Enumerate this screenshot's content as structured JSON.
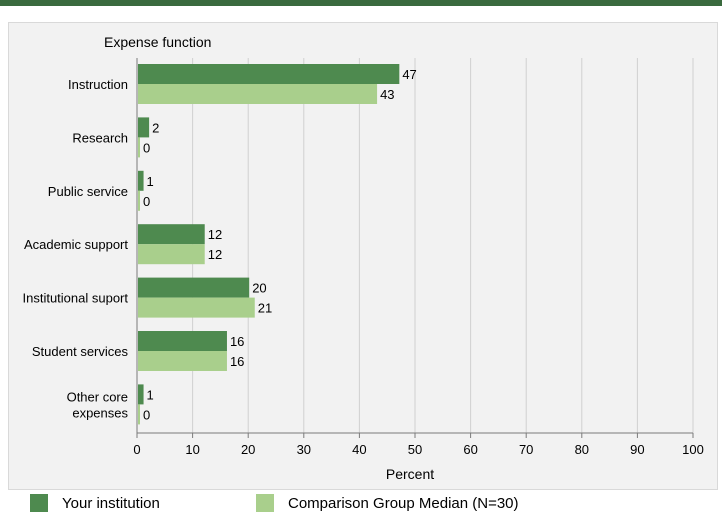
{
  "chart_data": {
    "type": "bar",
    "orientation": "horizontal",
    "category_axis_title": "Expense function",
    "xlabel": "Percent",
    "xlim": [
      0,
      100
    ],
    "xticks": [
      0,
      10,
      20,
      30,
      40,
      50,
      60,
      70,
      80,
      90,
      100
    ],
    "categories": [
      [
        "Instruction"
      ],
      [
        "Research"
      ],
      [
        "Public service"
      ],
      [
        "Academic support"
      ],
      [
        "Institutional suport"
      ],
      [
        "Student services"
      ],
      [
        "Other core",
        "expenses"
      ]
    ],
    "series": [
      {
        "name": "Your institution",
        "color": "#4e8a4f",
        "values": [
          47,
          2,
          1,
          12,
          20,
          16,
          1
        ]
      },
      {
        "name": "Comparison Group Median (N=30)",
        "color": "#a9cf8c",
        "values": [
          43,
          0,
          0,
          12,
          21,
          16,
          0
        ]
      }
    ],
    "grid": true,
    "legend_position": "bottom"
  }
}
